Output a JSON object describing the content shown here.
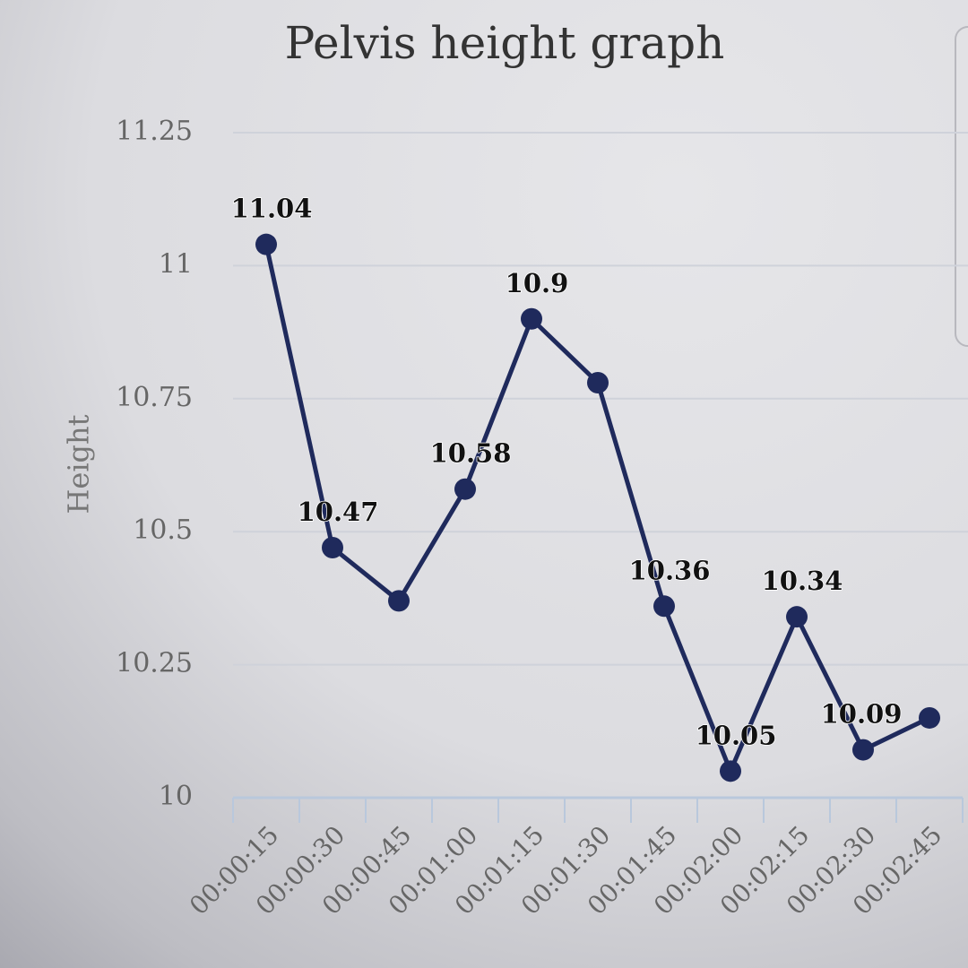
{
  "chart_data": {
    "type": "line",
    "title": "Pelvis height graph",
    "y_label": "Height",
    "categories": [
      "00:00:15",
      "00:00:30",
      "00:00:45",
      "00:01:00",
      "00:01:15",
      "00:01:30",
      "00:01:45",
      "00:02:00",
      "00:02:15",
      "00:02:30",
      "00:02:45"
    ],
    "values": [
      11.04,
      10.47,
      10.37,
      10.58,
      10.9,
      10.78,
      10.36,
      10.05,
      10.34,
      10.09,
      10.15
    ],
    "value_labels": [
      "11.04",
      "10.47",
      null,
      "10.58",
      "10.9",
      null,
      "10.36",
      "10.05",
      "10.34",
      "10.09",
      null
    ],
    "color": "#1f2a5c",
    "ylim": [
      10,
      11.25
    ],
    "yticks": [
      10,
      10.25,
      10.5,
      10.75,
      11,
      11.25
    ],
    "grid": true
  }
}
